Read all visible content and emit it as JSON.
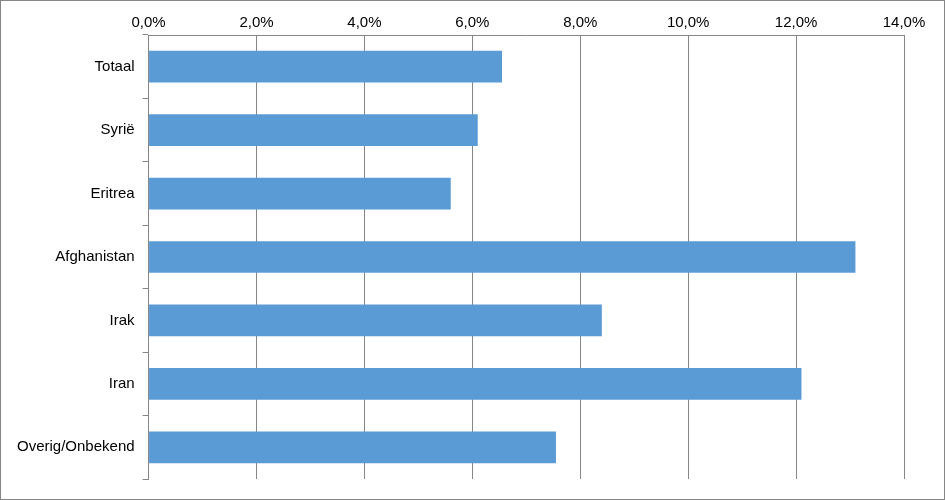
{
  "chart_data": {
    "type": "bar",
    "orientation": "horizontal",
    "categories": [
      "Totaal",
      "Syrië",
      "Eritrea",
      "Afghanistan",
      "Irak",
      "Iran",
      "Overig/Onbekend"
    ],
    "values": [
      6.55,
      6.1,
      5.6,
      13.1,
      8.4,
      12.1,
      7.55
    ],
    "color": "#5b9bd5",
    "xlim": [
      0,
      14
    ],
    "xticks": [
      {
        "value": 0,
        "label": "0,0%"
      },
      {
        "value": 2,
        "label": "2,0%"
      },
      {
        "value": 4,
        "label": "4,0%"
      },
      {
        "value": 6,
        "label": "6,0%"
      },
      {
        "value": 8,
        "label": "8,0%"
      },
      {
        "value": 10,
        "label": "10,0%"
      },
      {
        "value": 12,
        "label": "12,0%"
      },
      {
        "value": 14,
        "label": "14,0%"
      }
    ],
    "grid": true
  }
}
